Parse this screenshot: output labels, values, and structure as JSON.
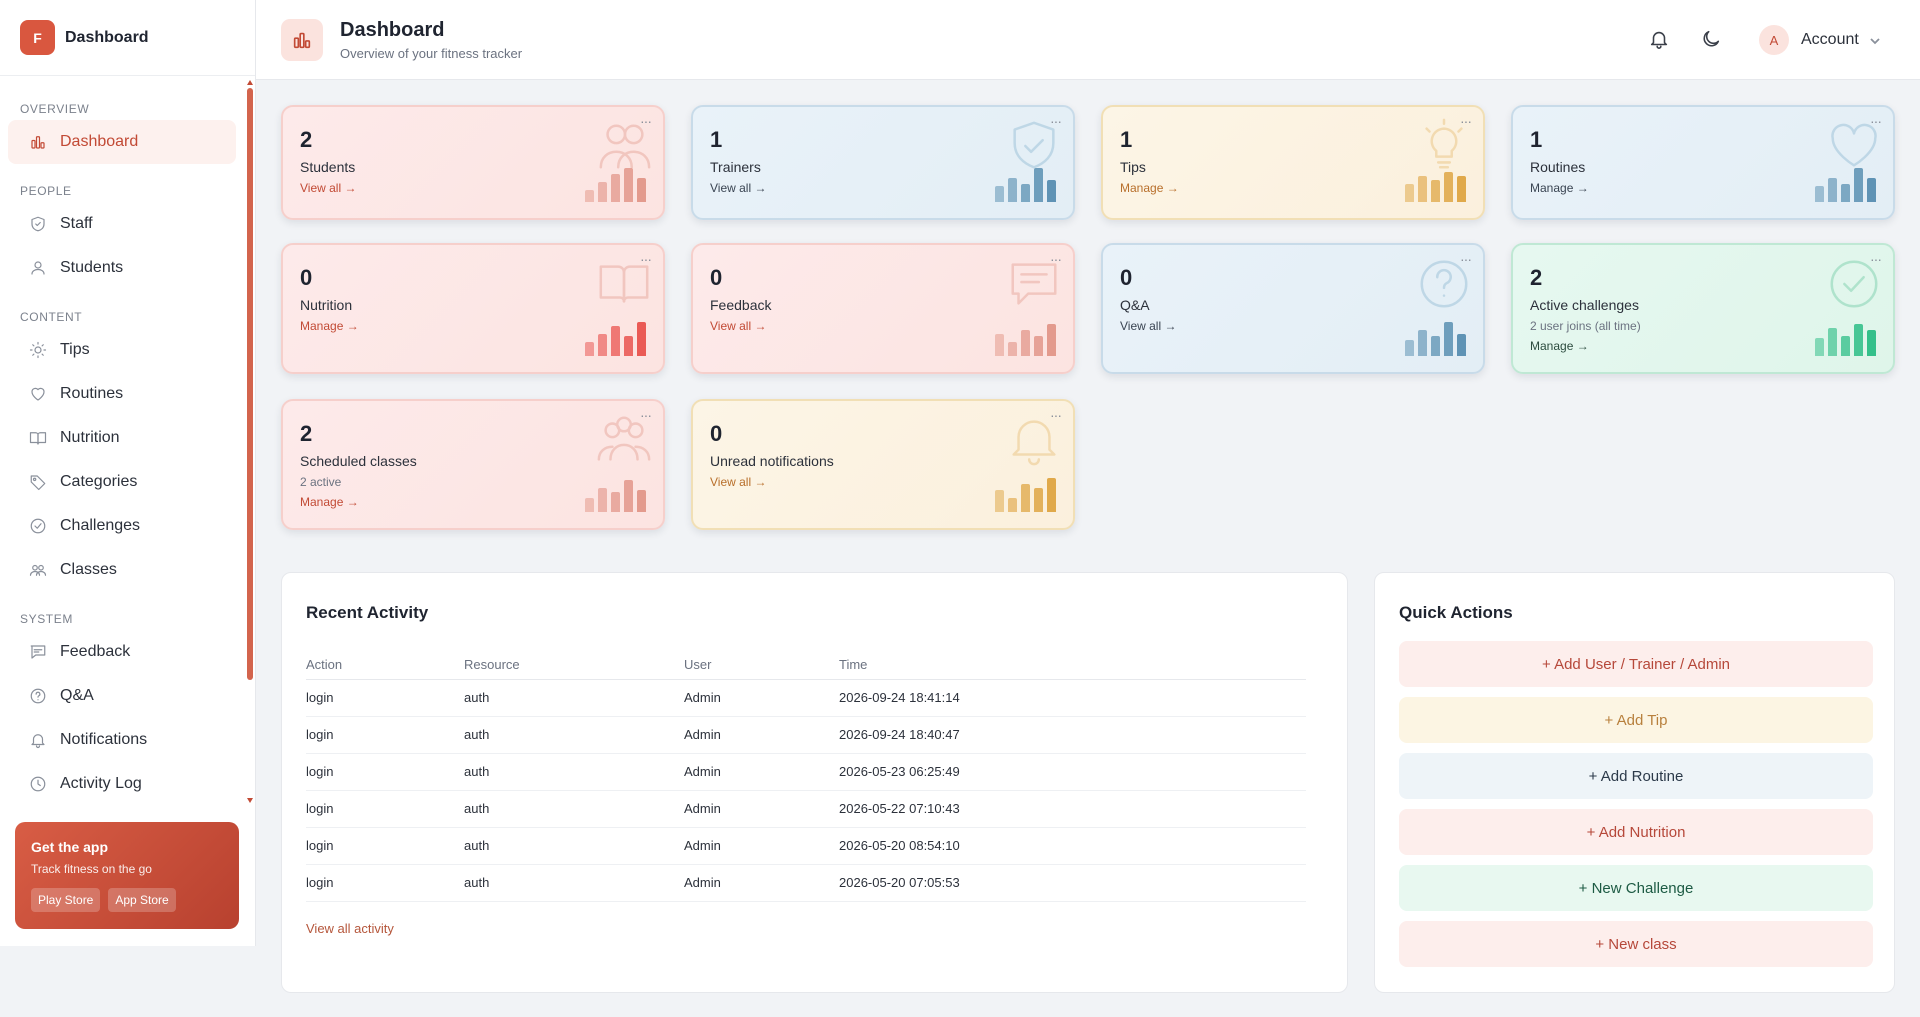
{
  "sidebar": {
    "brand_letter": "F",
    "brand_title": "Dashboard",
    "sections": {
      "overview": "OVERVIEW",
      "people": "PEOPLE",
      "content": "CONTENT",
      "system": "SYSTEM"
    },
    "items": {
      "dashboard": "Dashboard",
      "staff": "Staff",
      "students": "Students",
      "tips": "Tips",
      "routines": "Routines",
      "nutrition": "Nutrition",
      "categories": "Categories",
      "challenges": "Challenges",
      "classes": "Classes",
      "feedback": "Feedback",
      "qa": "Q&A",
      "notifications": "Notifications",
      "activity": "Activity Log"
    },
    "active_item": "Dashboard",
    "app_promo": {
      "title": "Get the app",
      "subtitle": "Track fitness on the go",
      "play_store": "Play Store",
      "app_store": "App Store"
    }
  },
  "header": {
    "title": "Dashboard",
    "subtitle": "Overview of your fitness tracker",
    "account_initial": "A",
    "account_label": "Account",
    "icons": [
      "bell-icon",
      "moon-icon",
      "chevron-down-icon"
    ]
  },
  "stats": {
    "students": {
      "value": "2",
      "label": "Students",
      "link": "View all →"
    },
    "trainers": {
      "value": "1",
      "label": "Trainers",
      "link": "View all →"
    },
    "tips": {
      "value": "1",
      "label": "Tips",
      "link": "Manage →"
    },
    "routines": {
      "value": "1",
      "label": "Routines",
      "link": "Manage →"
    },
    "nutrition": {
      "value": "0",
      "label": "Nutrition",
      "link": "Manage →"
    },
    "feedback": {
      "value": "0",
      "label": "Feedback",
      "link": "View all →"
    },
    "qa": {
      "value": "0",
      "label": "Q&A",
      "link": "View all →"
    },
    "challenges": {
      "value": "2",
      "label": "Active challenges",
      "extra": "2 user joins (all time)",
      "link": "Manage →"
    },
    "classes": {
      "value": "2",
      "label": "Scheduled classes",
      "extra": "2 active",
      "link": "Manage →"
    },
    "notifications": {
      "value": "0",
      "label": "Unread notifications",
      "link": "View all →"
    }
  },
  "recent_activity": {
    "title": "Recent Activity",
    "columns": [
      "Action",
      "Resource",
      "User",
      "Time"
    ],
    "rows": [
      [
        "login",
        "auth",
        "Admin",
        "2026-09-24 18:41:14"
      ],
      [
        "login",
        "auth",
        "Admin",
        "2026-09-24 18:40:47"
      ],
      [
        "login",
        "auth",
        "Admin",
        "2026-05-23 06:25:49"
      ],
      [
        "login",
        "auth",
        "Admin",
        "2026-05-22 07:10:43"
      ],
      [
        "login",
        "auth",
        "Admin",
        "2026-05-20 08:54:10"
      ],
      [
        "login",
        "auth",
        "Admin",
        "2026-05-20 07:05:53"
      ]
    ],
    "view_all": "View all activity"
  },
  "quick_actions": {
    "title": "Quick Actions",
    "add_user": "+ Add User / Trainer / Admin",
    "add_tip": "+ Add Tip",
    "add_routine": "+ Add Routine",
    "add_nutrition": "+ Add Nutrition",
    "new_challenge": "+ New Challenge",
    "new_class": "+ New class"
  },
  "colors": {
    "accent": "#c24a35",
    "pink_bars": "#e39a8d",
    "blue_bars": "#5f93b5",
    "yellow_bars": "#e0a94a",
    "green_bars": "#34c08a",
    "red_bars": "#ea5a55"
  }
}
